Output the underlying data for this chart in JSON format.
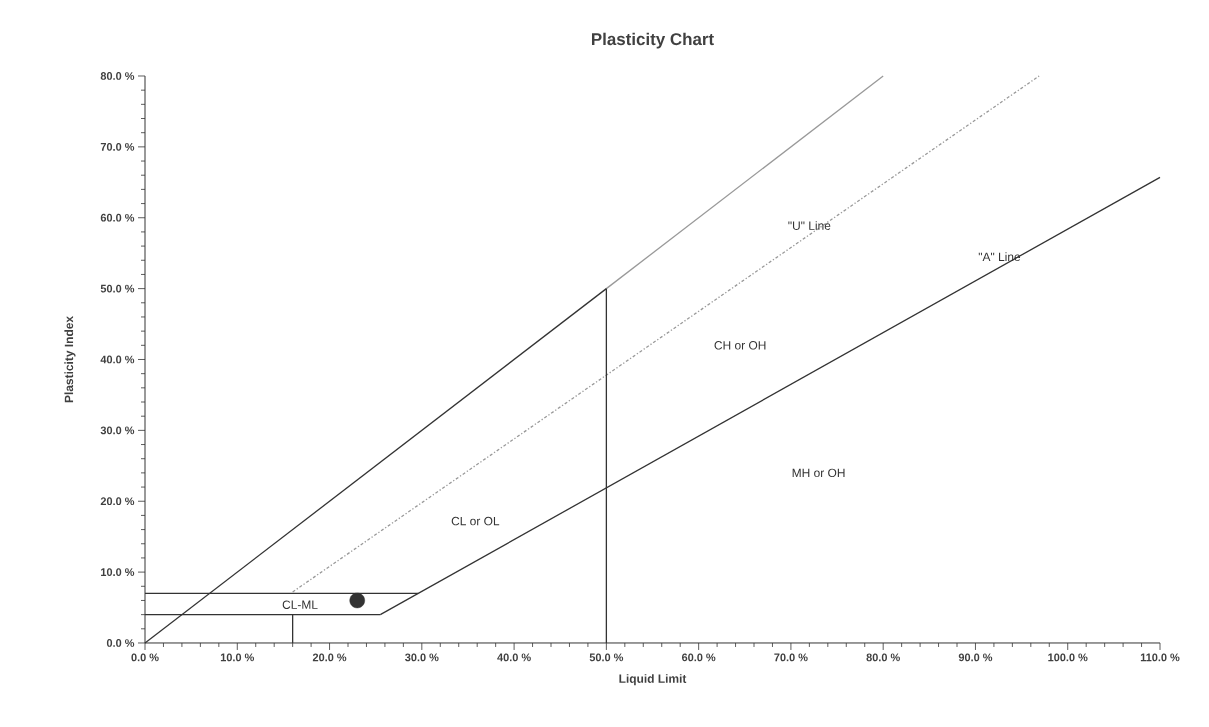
{
  "chart_data": {
    "type": "line",
    "title": "Plasticity Chart",
    "xlabel": "Liquid Limit",
    "ylabel": "Plasticity Index",
    "xlim": [
      0,
      110
    ],
    "ylim": [
      0,
      80
    ],
    "xticks": [
      {
        "value": 0,
        "label": "0.0 %"
      },
      {
        "value": 10,
        "label": "10.0 %"
      },
      {
        "value": 20,
        "label": "20.0 %"
      },
      {
        "value": 30,
        "label": "30.0 %"
      },
      {
        "value": 40,
        "label": "40.0 %"
      },
      {
        "value": 50,
        "label": "50.0 %"
      },
      {
        "value": 60,
        "label": "60.0 %"
      },
      {
        "value": 70,
        "label": "70.0 %"
      },
      {
        "value": 80,
        "label": "80.0 %"
      },
      {
        "value": 90,
        "label": "90.0 %"
      },
      {
        "value": 100,
        "label": "100.0 %"
      },
      {
        "value": 110,
        "label": "110.0 %"
      }
    ],
    "yticks": [
      {
        "value": 0,
        "label": "0.0 %"
      },
      {
        "value": 10,
        "label": "10.0 %"
      },
      {
        "value": 20,
        "label": "20.0 %"
      },
      {
        "value": 30,
        "label": "30.0 %"
      },
      {
        "value": 40,
        "label": "40.0 %"
      },
      {
        "value": 50,
        "label": "50.0 %"
      },
      {
        "value": 60,
        "label": "60.0 %"
      },
      {
        "value": 70,
        "label": "70.0 %"
      },
      {
        "value": 80,
        "label": "80.0 %"
      }
    ],
    "grid": false,
    "series": [
      {
        "color": "#333333",
        "x": [
          0,
          50
        ],
        "values": [
          0,
          50
        ]
      },
      {
        "color": "#999999",
        "x": [
          50,
          80
        ],
        "values": [
          50,
          80
        ]
      },
      {
        "color": "#999999",
        "line_style": "dashed",
        "x": [
          16,
          96.9
        ],
        "values": [
          7.2,
          80
        ]
      },
      {
        "color": "#333333",
        "x": [
          25.5,
          110
        ],
        "values": [
          4,
          65.7
        ]
      },
      {
        "color": "#333333",
        "x": [
          0,
          29.6
        ],
        "values": [
          7,
          7
        ]
      },
      {
        "color": "#333333",
        "x": [
          0,
          25.5
        ],
        "values": [
          4,
          4
        ]
      },
      {
        "color": "#333333",
        "x": [
          16,
          16
        ],
        "values": [
          0,
          4
        ]
      },
      {
        "color": "#333333",
        "x": [
          50,
          50
        ],
        "values": [
          0,
          50
        ]
      },
      {
        "type": "scatter",
        "marker": "circle",
        "color": "#333333",
        "x": [
          23
        ],
        "values": [
          6
        ]
      }
    ],
    "annotations": [
      "\"U\" Line",
      "\"A\" Line",
      "CH or OH",
      "MH or OH",
      "CL or OL",
      "CL-ML"
    ]
  }
}
